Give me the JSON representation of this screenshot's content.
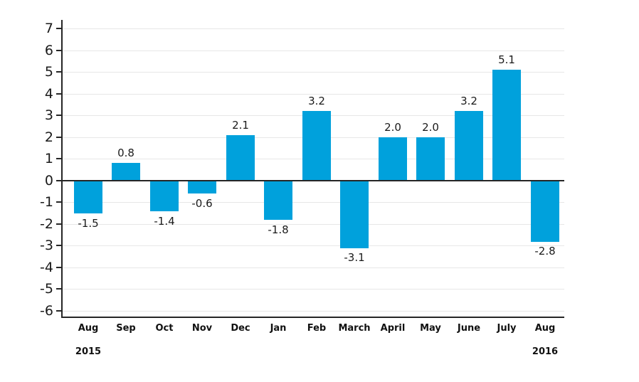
{
  "chart_data": {
    "type": "bar",
    "title": "",
    "xlabel": "",
    "ylabel": "",
    "categories": [
      "Aug",
      "Sep",
      "Oct",
      "Nov",
      "Dec",
      "Jan",
      "Feb",
      "March",
      "April",
      "May",
      "June",
      "July",
      "Aug"
    ],
    "values": [
      -1.5,
      0.8,
      -1.4,
      -0.6,
      2.1,
      -1.8,
      3.2,
      -3.1,
      2.0,
      2.0,
      3.2,
      5.1,
      -2.8
    ],
    "value_labels": [
      "-1.5",
      "0.8",
      "-1.4",
      "-0.6",
      "2.1",
      "-1.8",
      "3.2",
      "-3.1",
      "2.0",
      "2.0",
      "3.2",
      "5.1",
      "-2.8"
    ],
    "yticks": [
      7,
      6,
      5,
      4,
      3,
      2,
      1,
      0,
      -1,
      -2,
      -3,
      -4,
      -5,
      -6
    ],
    "ylim": [
      -6,
      7
    ],
    "grid": true,
    "legend": false,
    "year_labels": [
      {
        "text": "2015",
        "category_index": 0
      },
      {
        "text": "2016",
        "category_index": 12
      }
    ],
    "colors": {
      "bar": "#00a1dc",
      "gridline": "#e7e7e7",
      "axis": "#262626",
      "text": "#1a1a1a"
    }
  }
}
